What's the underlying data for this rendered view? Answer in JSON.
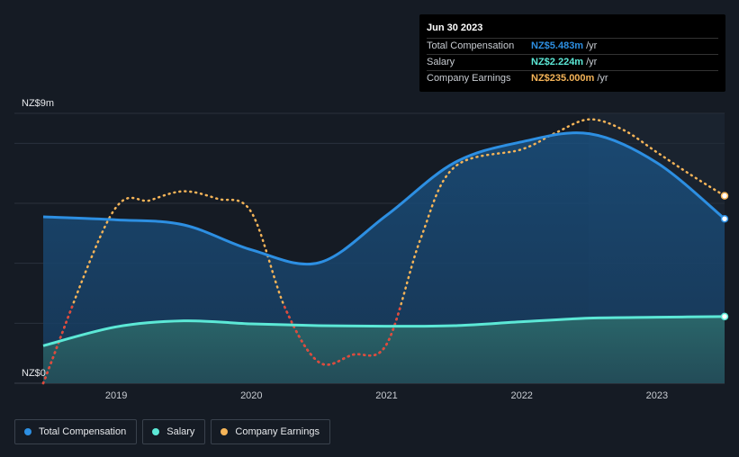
{
  "chart_data": {
    "type": "area",
    "title": "",
    "xlabel": "",
    "ylabel": "",
    "currency": "NZ$",
    "ylim": [
      0,
      9
    ],
    "y_tick_labels": [
      "NZ$9m",
      "NZ$0"
    ],
    "x_tick_labels": [
      "2019",
      "2020",
      "2021",
      "2022",
      "2023"
    ],
    "xlim": [
      2018.46,
      2023.5
    ],
    "grid": true,
    "series": [
      {
        "name": "Total Compensation",
        "color": "#2d8fe2",
        "style": "solid-area",
        "x": [
          2018.46,
          2019.0,
          2019.5,
          2020.0,
          2020.5,
          2021.0,
          2021.5,
          2022.0,
          2022.5,
          2023.0,
          2023.5
        ],
        "y": [
          5.55,
          5.45,
          5.28,
          4.45,
          4.02,
          5.6,
          7.35,
          8.05,
          8.32,
          7.35,
          5.483
        ]
      },
      {
        "name": "Salary",
        "color": "#5ce8d6",
        "style": "solid-area",
        "x": [
          2018.46,
          2019.0,
          2019.5,
          2020.0,
          2020.5,
          2021.0,
          2021.5,
          2022.0,
          2022.5,
          2023.0,
          2023.5
        ],
        "y": [
          1.25,
          1.88,
          2.08,
          1.98,
          1.92,
          1.9,
          1.92,
          2.05,
          2.17,
          2.2,
          2.224
        ]
      },
      {
        "name": "Company Earnings",
        "color": "#f5b458",
        "style": "dotted",
        "x": [
          2018.46,
          2018.96,
          2019.25,
          2019.5,
          2019.75,
          2020.0,
          2020.25,
          2020.5,
          2020.75,
          2021.0,
          2021.25,
          2021.5,
          2022.0,
          2022.25,
          2022.5,
          2022.75,
          2023.0,
          2023.25,
          2023.5
        ],
        "y": [
          0.0,
          5.6,
          6.1,
          6.4,
          6.15,
          5.7,
          2.5,
          0.7,
          0.95,
          1.3,
          4.8,
          7.2,
          7.8,
          8.35,
          8.8,
          8.45,
          7.7,
          6.95,
          6.25
        ]
      }
    ],
    "legend": [
      "Total Compensation",
      "Salary",
      "Company Earnings"
    ],
    "legend_position": "bottom-left"
  },
  "tooltip": {
    "date": "Jun 30 2023",
    "rows": [
      {
        "label": "Total Compensation",
        "value": "NZ$5.483m",
        "unit": "/yr",
        "color": "#2d8fe2"
      },
      {
        "label": "Salary",
        "value": "NZ$2.224m",
        "unit": "/yr",
        "color": "#5ce8d6"
      },
      {
        "label": "Company Earnings",
        "value": "NZ$235.000m",
        "unit": "/yr",
        "color": "#f5b458"
      }
    ]
  },
  "legend": {
    "items": [
      {
        "label": "Total Compensation",
        "color": "#2d8fe2"
      },
      {
        "label": "Salary",
        "color": "#5ce8d6"
      },
      {
        "label": "Company Earnings",
        "color": "#f5b458"
      }
    ]
  }
}
